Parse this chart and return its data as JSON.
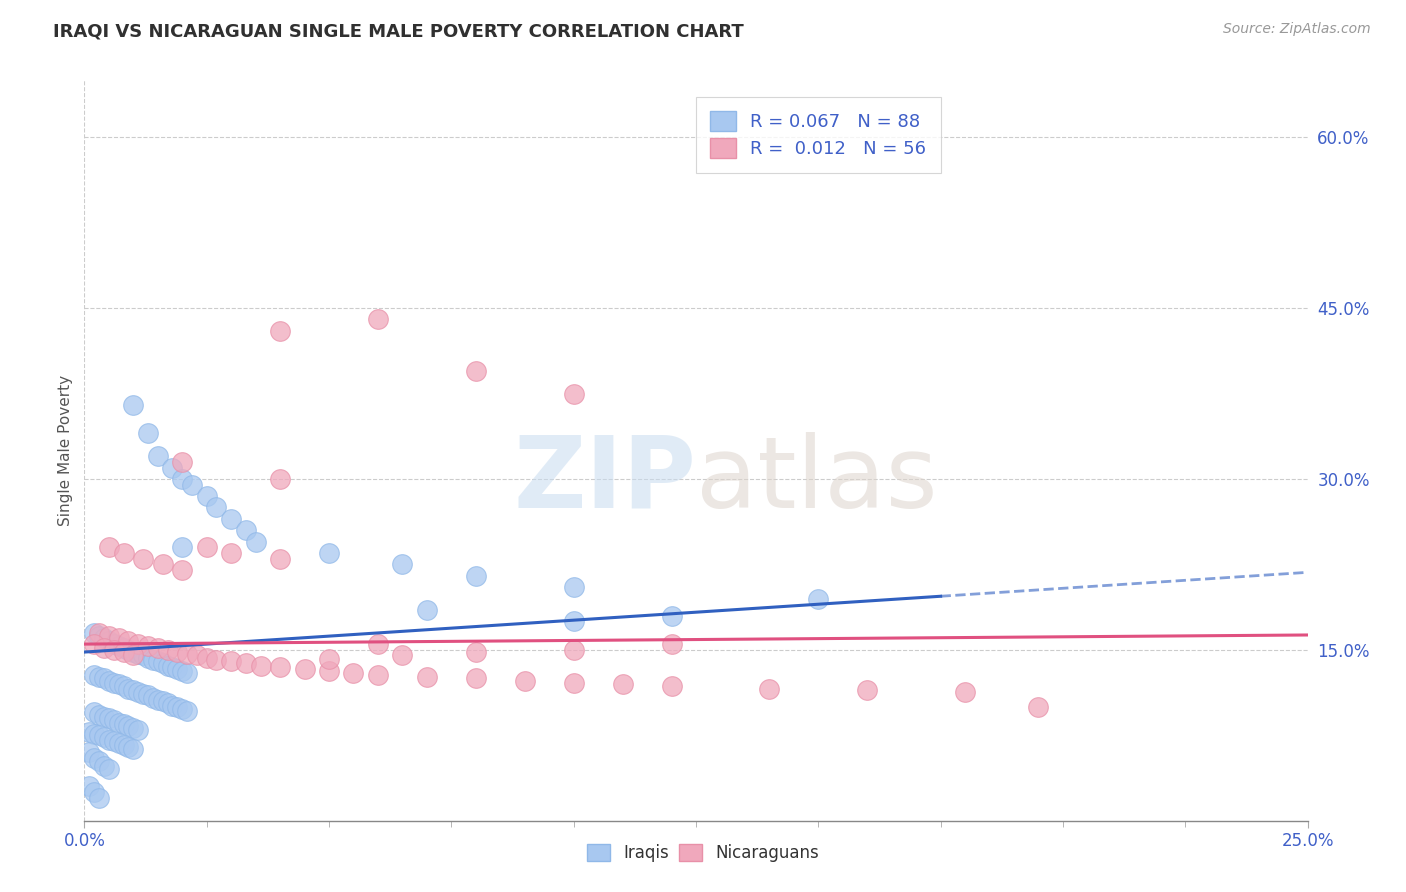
{
  "title": "IRAQI VS NICARAGUAN SINGLE MALE POVERTY CORRELATION CHART",
  "source_text": "Source: ZipAtlas.com",
  "ylabel": "Single Male Poverty",
  "xlim": [
    0.0,
    0.25
  ],
  "ylim": [
    0.0,
    0.65
  ],
  "yticks_right": [
    0.15,
    0.3,
    0.45,
    0.6
  ],
  "ytick_labels_right": [
    "15.0%",
    "30.0%",
    "45.0%",
    "60.0%"
  ],
  "blue_color": "#a8c8f0",
  "pink_color": "#f0a8bc",
  "blue_line_color": "#3060c0",
  "pink_line_color": "#e05080",
  "blue_line_start_y": 0.148,
  "blue_line_end_y": 0.218,
  "blue_line_solid_end_x": 0.175,
  "pink_line_start_y": 0.155,
  "pink_line_end_y": 0.163,
  "legend_R1": "R = 0.067   N = 88",
  "legend_R2": "R =  0.012   N = 56",
  "title_color": "#303030",
  "axis_label_color": "#555555",
  "tick_color": "#4060c8",
  "blue_scatter_x": [
    0.01,
    0.013,
    0.015,
    0.018,
    0.02,
    0.022,
    0.025,
    0.027,
    0.03,
    0.033,
    0.002,
    0.003,
    0.004,
    0.005,
    0.006,
    0.007,
    0.008,
    0.009,
    0.01,
    0.011,
    0.012,
    0.013,
    0.014,
    0.015,
    0.016,
    0.017,
    0.018,
    0.019,
    0.02,
    0.021,
    0.002,
    0.003,
    0.004,
    0.005,
    0.006,
    0.007,
    0.008,
    0.009,
    0.01,
    0.011,
    0.012,
    0.013,
    0.014,
    0.015,
    0.016,
    0.017,
    0.018,
    0.019,
    0.02,
    0.021,
    0.002,
    0.003,
    0.004,
    0.005,
    0.006,
    0.007,
    0.008,
    0.009,
    0.01,
    0.011,
    0.001,
    0.002,
    0.003,
    0.004,
    0.005,
    0.006,
    0.007,
    0.008,
    0.009,
    0.01,
    0.001,
    0.002,
    0.003,
    0.004,
    0.005,
    0.001,
    0.002,
    0.003,
    0.02,
    0.035,
    0.05,
    0.065,
    0.08,
    0.1,
    0.12,
    0.15,
    0.1,
    0.07
  ],
  "blue_scatter_y": [
    0.365,
    0.34,
    0.32,
    0.31,
    0.3,
    0.295,
    0.285,
    0.275,
    0.265,
    0.255,
    0.165,
    0.162,
    0.16,
    0.158,
    0.155,
    0.153,
    0.152,
    0.15,
    0.148,
    0.146,
    0.145,
    0.143,
    0.141,
    0.14,
    0.138,
    0.136,
    0.135,
    0.133,
    0.131,
    0.13,
    0.128,
    0.126,
    0.125,
    0.123,
    0.121,
    0.12,
    0.118,
    0.116,
    0.115,
    0.113,
    0.111,
    0.11,
    0.108,
    0.106,
    0.105,
    0.103,
    0.101,
    0.1,
    0.098,
    0.096,
    0.095,
    0.093,
    0.091,
    0.09,
    0.088,
    0.086,
    0.085,
    0.083,
    0.081,
    0.08,
    0.078,
    0.076,
    0.075,
    0.073,
    0.071,
    0.07,
    0.068,
    0.066,
    0.065,
    0.063,
    0.06,
    0.055,
    0.052,
    0.048,
    0.045,
    0.03,
    0.025,
    0.02,
    0.24,
    0.245,
    0.235,
    0.225,
    0.215,
    0.205,
    0.18,
    0.195,
    0.175,
    0.185
  ],
  "pink_scatter_x": [
    0.003,
    0.005,
    0.007,
    0.009,
    0.011,
    0.013,
    0.015,
    0.017,
    0.019,
    0.021,
    0.023,
    0.025,
    0.027,
    0.03,
    0.033,
    0.036,
    0.04,
    0.045,
    0.05,
    0.055,
    0.06,
    0.07,
    0.08,
    0.09,
    0.1,
    0.11,
    0.12,
    0.14,
    0.16,
    0.18,
    0.005,
    0.008,
    0.012,
    0.016,
    0.02,
    0.025,
    0.03,
    0.04,
    0.05,
    0.065,
    0.08,
    0.1,
    0.12,
    0.04,
    0.06,
    0.08,
    0.1,
    0.02,
    0.04,
    0.06,
    0.002,
    0.004,
    0.006,
    0.008,
    0.01,
    0.195
  ],
  "pink_scatter_y": [
    0.165,
    0.162,
    0.16,
    0.158,
    0.155,
    0.153,
    0.152,
    0.15,
    0.148,
    0.146,
    0.145,
    0.143,
    0.141,
    0.14,
    0.138,
    0.136,
    0.135,
    0.133,
    0.131,
    0.13,
    0.128,
    0.126,
    0.125,
    0.123,
    0.121,
    0.12,
    0.118,
    0.116,
    0.115,
    0.113,
    0.24,
    0.235,
    0.23,
    0.225,
    0.22,
    0.24,
    0.235,
    0.23,
    0.142,
    0.145,
    0.148,
    0.15,
    0.155,
    0.43,
    0.44,
    0.395,
    0.375,
    0.315,
    0.3,
    0.155,
    0.155,
    0.152,
    0.15,
    0.148,
    0.145,
    0.1
  ]
}
